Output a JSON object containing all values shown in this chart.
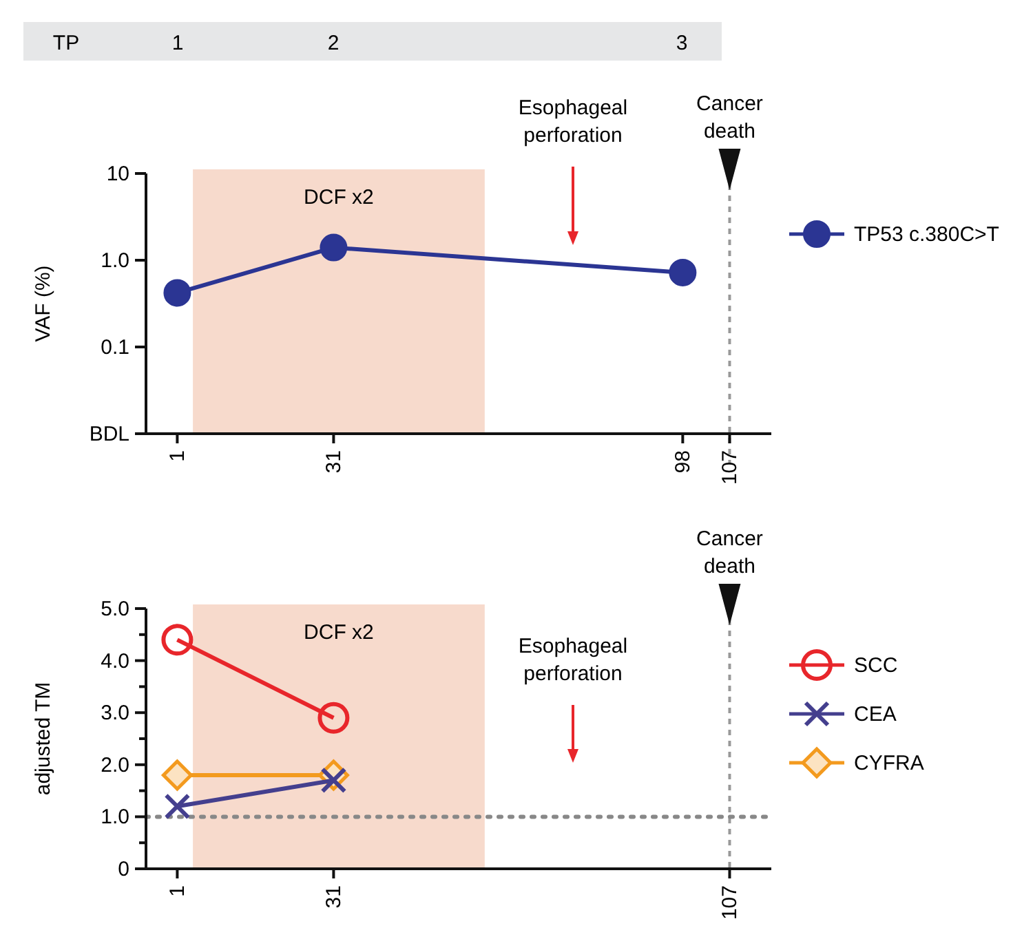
{
  "chart_data": [
    {
      "type": "line",
      "ylabel": "VAF (%)",
      "log": "y",
      "xlim": [
        -5,
        115
      ],
      "xticks": [
        1,
        31,
        98,
        107
      ],
      "ylim": [
        0.01,
        10
      ],
      "yticks": [
        {
          "value": 0.01,
          "label": "BDL"
        },
        0.1,
        {
          "value": 1,
          "label": "1.0"
        },
        10
      ],
      "grid": false,
      "legend": "right",
      "series": [
        {
          "name": "TP53 c.380C>T",
          "color": "#2b3593",
          "marker": "circle",
          "x": [
            1,
            31,
            98
          ],
          "values": [
            0.42,
            1.4,
            0.72
          ]
        }
      ],
      "bands": [
        {
          "axis": "x",
          "from": 4,
          "to": 60,
          "label": "DCF x2",
          "color": "#f7dacc"
        }
      ],
      "ref_lines": [
        {
          "axis": "x",
          "value": 107,
          "label": "Cancer death",
          "color": "#999999",
          "line_style": "dashed"
        }
      ],
      "annotations": [
        "TP",
        "1",
        "2",
        "3",
        "Esophageal perforation"
      ]
    },
    {
      "type": "line",
      "ylabel": "adjusted TM",
      "xlim": [
        -5,
        115
      ],
      "xticks": [
        1,
        31,
        107
      ],
      "ylim": [
        0,
        5
      ],
      "yticks": [
        0,
        {
          "value": 0.5,
          "label": null
        },
        {
          "value": 1,
          "label": "1.0"
        },
        {
          "value": 1.5,
          "label": null
        },
        {
          "value": 2,
          "label": "2.0"
        },
        {
          "value": 2.5,
          "label": null
        },
        {
          "value": 3,
          "label": "3.0"
        },
        {
          "value": 3.5,
          "label": null
        },
        {
          "value": 4,
          "label": "4.0"
        },
        {
          "value": 4.5,
          "label": null
        },
        {
          "value": 5,
          "label": "5.0"
        }
      ],
      "grid": false,
      "legend": "right",
      "series": [
        {
          "name": "SCC",
          "color": "#e8262b",
          "marker": "circle",
          "x": [
            1,
            31
          ],
          "values": [
            4.4,
            2.9
          ]
        },
        {
          "name": "CEA",
          "color": "#443f8e",
          "marker": "cross",
          "x": [
            1,
            31
          ],
          "values": [
            1.2,
            1.7
          ]
        },
        {
          "name": "CYFRA",
          "color": "#f39a1e",
          "marker": "diamond",
          "x": [
            1,
            31
          ],
          "values": [
            1.8,
            1.8
          ]
        }
      ],
      "bands": [
        {
          "axis": "x",
          "from": 4,
          "to": 60,
          "label": "DCF x2",
          "color": "#f7dacc"
        }
      ],
      "ref_lines": [
        {
          "axis": "x",
          "value": 107,
          "label": "Cancer death",
          "color": "#999999",
          "line_style": "dashed"
        },
        {
          "axis": "y",
          "value": 1,
          "color": "#888888",
          "line_style": "dotted"
        }
      ],
      "annotations": [
        "Esophageal perforation"
      ]
    }
  ]
}
